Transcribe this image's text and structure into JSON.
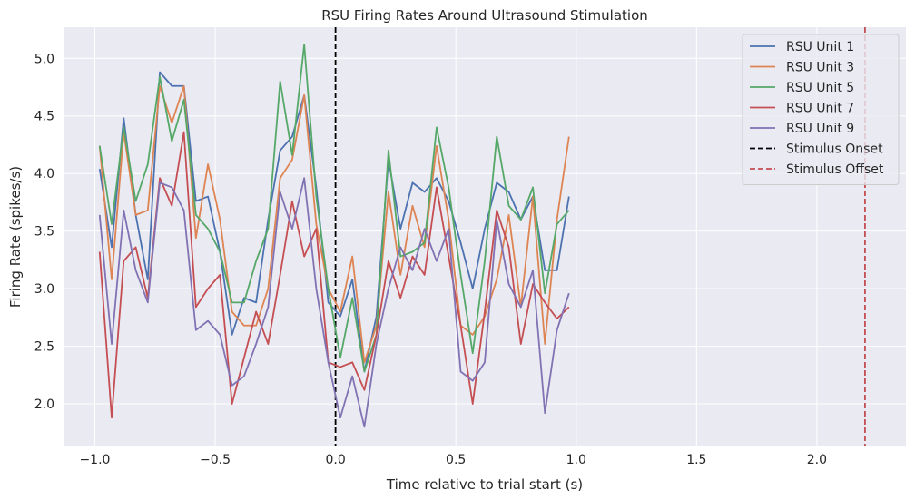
{
  "chart_data": {
    "type": "line",
    "title": "RSU Firing Rates Around Ultrasound Stimulation",
    "xlabel": "Time relative to trial start (s)",
    "ylabel": "Firing Rate (spikes/s)",
    "xlim": [
      -1.13,
      2.37
    ],
    "ylim": [
      1.63,
      5.27
    ],
    "xticks": [
      -1.0,
      -0.5,
      0.0,
      0.5,
      1.0,
      1.5,
      2.0
    ],
    "xtick_labels": [
      "−1.0",
      "−0.5",
      "0.0",
      "0.5",
      "1.0",
      "1.5",
      "2.0"
    ],
    "yticks": [
      2.0,
      2.5,
      3.0,
      3.5,
      4.0,
      4.5,
      5.0
    ],
    "ytick_labels": [
      "2.0",
      "2.5",
      "3.0",
      "3.5",
      "4.0",
      "4.5",
      "5.0"
    ],
    "grid": true,
    "legend_position": "top-right",
    "x": [
      -0.98,
      -0.93,
      -0.88,
      -0.83,
      -0.78,
      -0.73,
      -0.68,
      -0.63,
      -0.58,
      -0.53,
      -0.48,
      -0.43,
      -0.38,
      -0.33,
      -0.28,
      -0.23,
      -0.18,
      -0.13,
      -0.08,
      -0.03,
      0.02,
      0.07,
      0.12,
      0.17,
      0.22,
      0.27,
      0.32,
      0.37,
      0.42,
      0.47,
      0.52,
      0.57,
      0.62,
      0.67,
      0.72,
      0.77,
      0.82,
      0.87,
      0.92,
      0.97
    ],
    "series": [
      {
        "name": "RSU Unit 1",
        "color": "#4c72b0",
        "values": [
          4.04,
          3.36,
          4.48,
          3.64,
          3.08,
          4.88,
          4.76,
          4.76,
          3.76,
          3.8,
          3.32,
          2.6,
          2.92,
          2.88,
          3.6,
          4.2,
          4.32,
          4.68,
          3.88,
          2.88,
          2.76,
          3.08,
          2.28,
          2.76,
          4.12,
          3.52,
          3.92,
          3.84,
          3.96,
          3.76,
          3.4,
          3.0,
          3.52,
          3.92,
          3.84,
          3.6,
          3.8,
          3.16,
          3.16,
          3.8
        ]
      },
      {
        "name": "RSU Unit 3",
        "color": "#dd8452",
        "values": [
          4.24,
          3.08,
          4.36,
          3.64,
          3.68,
          4.76,
          4.44,
          4.76,
          3.44,
          4.08,
          3.6,
          2.8,
          2.68,
          2.68,
          3.0,
          3.96,
          4.12,
          4.68,
          3.56,
          3.0,
          2.8,
          3.28,
          2.36,
          2.68,
          3.84,
          3.12,
          3.72,
          3.36,
          4.24,
          3.6,
          2.68,
          2.6,
          2.76,
          3.08,
          3.64,
          2.84,
          3.8,
          2.52,
          3.6,
          4.32
        ]
      },
      {
        "name": "RSU Unit 5",
        "color": "#55a868",
        "values": [
          4.24,
          3.56,
          4.4,
          3.76,
          4.08,
          4.84,
          4.28,
          4.64,
          3.64,
          3.52,
          3.32,
          2.88,
          2.88,
          3.24,
          3.52,
          4.8,
          4.16,
          5.12,
          3.8,
          3.0,
          2.4,
          2.92,
          2.28,
          2.6,
          4.2,
          3.28,
          3.32,
          3.4,
          4.4,
          3.88,
          3.12,
          2.44,
          3.24,
          4.32,
          3.72,
          3.6,
          3.88,
          2.96,
          3.56,
          3.68
        ]
      },
      {
        "name": "RSU Unit 7",
        "color": "#c44e52",
        "values": [
          3.32,
          1.88,
          3.24,
          3.36,
          2.92,
          3.96,
          3.72,
          4.36,
          2.84,
          3.0,
          3.12,
          2.0,
          2.4,
          2.8,
          2.52,
          3.12,
          3.76,
          3.28,
          3.52,
          2.36,
          2.32,
          2.36,
          2.12,
          2.6,
          3.24,
          2.92,
          3.28,
          3.12,
          3.88,
          3.28,
          2.68,
          2.0,
          2.8,
          3.68,
          3.36,
          2.52,
          3.04,
          2.88,
          2.74,
          2.84
        ]
      },
      {
        "name": "RSU Unit 9",
        "color": "#8172b3",
        "values": [
          3.64,
          2.52,
          3.68,
          3.16,
          2.88,
          3.92,
          3.88,
          3.68,
          2.64,
          2.72,
          2.6,
          2.16,
          2.24,
          2.52,
          2.84,
          3.84,
          3.52,
          3.96,
          3.0,
          2.36,
          1.88,
          2.24,
          1.8,
          2.52,
          3.0,
          3.36,
          3.16,
          3.52,
          3.24,
          3.52,
          2.28,
          2.2,
          2.36,
          3.6,
          3.04,
          2.84,
          3.16,
          1.92,
          2.64,
          2.96
        ]
      }
    ],
    "vlines": [
      {
        "name": "Stimulus Onset",
        "x": 0.0,
        "color": "#000000",
        "style": "dashed"
      },
      {
        "name": "Stimulus Offset",
        "x": 2.2,
        "color": "#c44e52",
        "style": "dashed"
      }
    ]
  }
}
